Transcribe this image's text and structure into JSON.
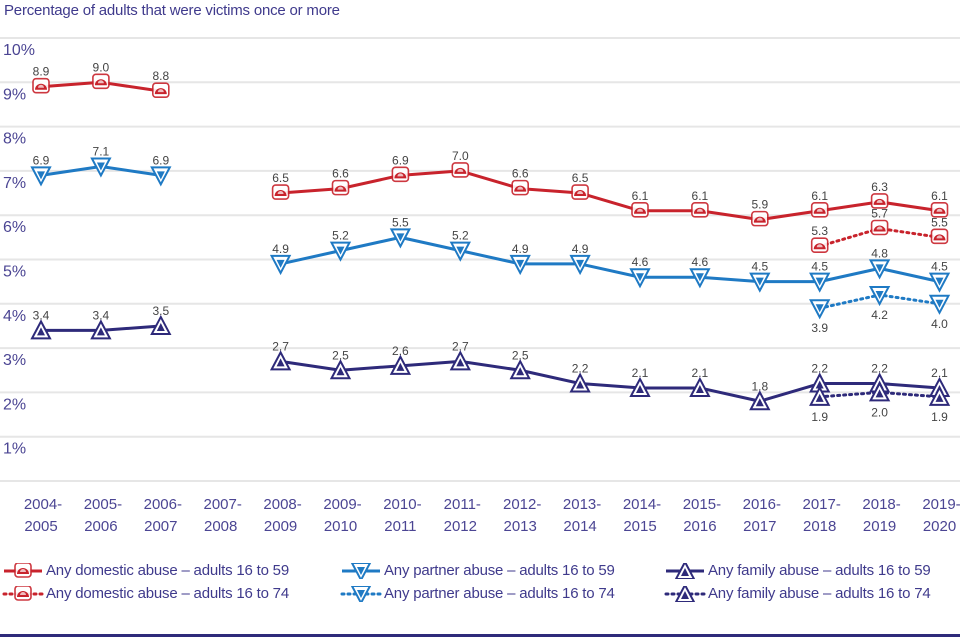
{
  "chart_data": {
    "type": "line",
    "title": "Percentage of adults that were victims once or more",
    "xlabel": "",
    "ylabel": "",
    "ylim": [
      0,
      10
    ],
    "y_ticks": [
      "1%",
      "2%",
      "3%",
      "4%",
      "5%",
      "6%",
      "7%",
      "8%",
      "9%",
      "10%"
    ],
    "grid": true,
    "legend_position": "bottom",
    "categories": [
      [
        "2004-",
        "2005"
      ],
      [
        "2005-",
        "2006"
      ],
      [
        "2006-",
        "2007"
      ],
      [
        "2007-",
        "2008"
      ],
      [
        "2008-",
        "2009"
      ],
      [
        "2009-",
        "2010"
      ],
      [
        "2010-",
        "2011"
      ],
      [
        "2011-",
        "2012"
      ],
      [
        "2012-",
        "2013"
      ],
      [
        "2013-",
        "2014"
      ],
      [
        "2014-",
        "2015"
      ],
      [
        "2015-",
        "2016"
      ],
      [
        "2016-",
        "2017"
      ],
      [
        "2017-",
        "2018"
      ],
      [
        "2018-",
        "2019"
      ],
      [
        "2019-",
        "2020"
      ]
    ],
    "series": [
      {
        "name": "Any domestic abuse – adults 16 to 59",
        "color": "#c8232c",
        "marker": "semicircle",
        "dash": "solid",
        "label_position": "above",
        "values": [
          8.9,
          9.0,
          8.8,
          null,
          6.5,
          6.6,
          6.9,
          7.0,
          6.6,
          6.5,
          6.1,
          6.1,
          5.9,
          6.1,
          6.3,
          6.1
        ]
      },
      {
        "name": "Any domestic abuse – adults 16 to 74",
        "color": "#c8232c",
        "marker": "semicircle",
        "dash": "dotted",
        "label_position": "above",
        "values": [
          null,
          null,
          null,
          null,
          null,
          null,
          null,
          null,
          null,
          null,
          null,
          null,
          null,
          5.3,
          5.7,
          5.5
        ]
      },
      {
        "name": "Any partner abuse – adults 16 to 59",
        "color": "#1f7ac4",
        "marker": "triangle-down",
        "dash": "solid",
        "label_position": "above",
        "values": [
          6.9,
          7.1,
          6.9,
          null,
          4.9,
          5.2,
          5.5,
          5.2,
          4.9,
          4.9,
          4.6,
          4.6,
          4.5,
          4.5,
          4.8,
          4.5
        ]
      },
      {
        "name": "Any partner abuse – adults 16 to 74",
        "color": "#1f7ac4",
        "marker": "triangle-down",
        "dash": "dotted",
        "label_position": "below",
        "values": [
          null,
          null,
          null,
          null,
          null,
          null,
          null,
          null,
          null,
          null,
          null,
          null,
          null,
          3.9,
          4.2,
          4.0
        ]
      },
      {
        "name": "Any family abuse – adults 16 to 59",
        "color": "#2e2a7a",
        "marker": "triangle-up",
        "dash": "solid",
        "label_position": "above",
        "values": [
          3.4,
          3.4,
          3.5,
          null,
          2.7,
          2.5,
          2.6,
          2.7,
          2.5,
          2.2,
          2.1,
          2.1,
          1.8,
          2.2,
          2.2,
          2.1
        ]
      },
      {
        "name": "Any family abuse – adults 16 to 74",
        "color": "#2e2a7a",
        "marker": "triangle-up",
        "dash": "dotted",
        "label_position": "below",
        "values": [
          null,
          null,
          null,
          null,
          null,
          null,
          null,
          null,
          null,
          null,
          null,
          null,
          null,
          1.9,
          2.0,
          1.9
        ]
      }
    ]
  }
}
